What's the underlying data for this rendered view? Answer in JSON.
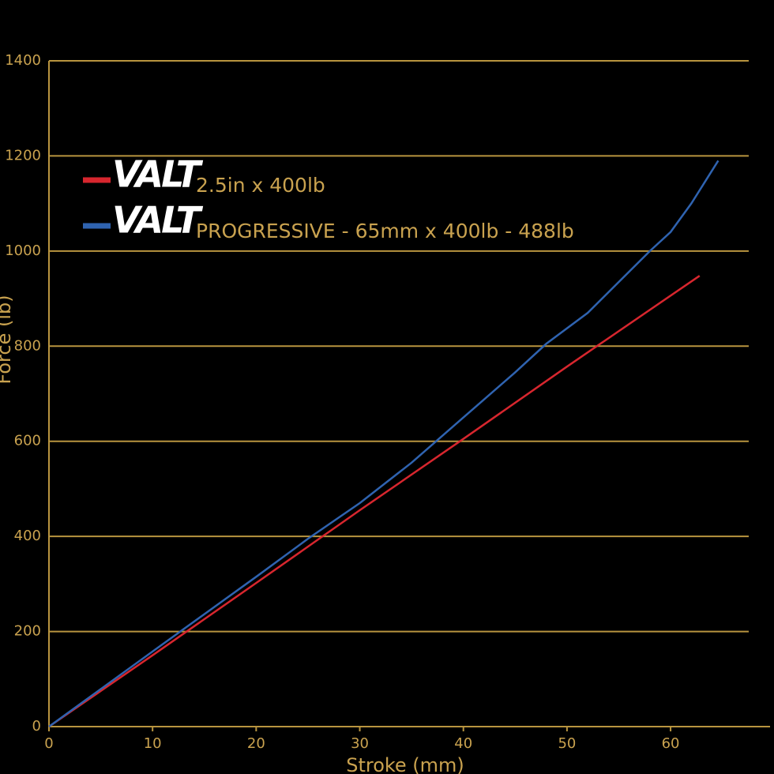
{
  "chart_data": {
    "type": "line",
    "xlabel": "Stroke (mm)",
    "ylabel": "Force (lb)",
    "legend_brand": "VALT",
    "series": [
      {
        "name": "2.5in x 400lb",
        "color": "#d7262e",
        "x": [
          0,
          10,
          20,
          30,
          40,
          50,
          62.8
        ],
        "values": [
          0,
          150,
          302,
          455,
          605,
          757,
          948
        ]
      },
      {
        "name": "PROGRESSIVE - 65mm x 400lb - 488lb",
        "color": "#2f63b0",
        "x": [
          0,
          10,
          20,
          25,
          30,
          35,
          40,
          45,
          48,
          52,
          55,
          58,
          60,
          62,
          64.6
        ],
        "values": [
          0,
          158,
          315,
          395,
          470,
          555,
          650,
          745,
          805,
          870,
          935,
          1000,
          1040,
          1100,
          1190
        ]
      }
    ],
    "xlim": [
      0,
      69.6
    ],
    "xticks": [
      0,
      10,
      20,
      30,
      40,
      50,
      60
    ],
    "ylim": [
      0,
      1400
    ],
    "yticks": [
      0,
      200,
      400,
      600,
      800,
      1000,
      1200,
      1400
    ],
    "grid": true,
    "legend": "upper left"
  }
}
